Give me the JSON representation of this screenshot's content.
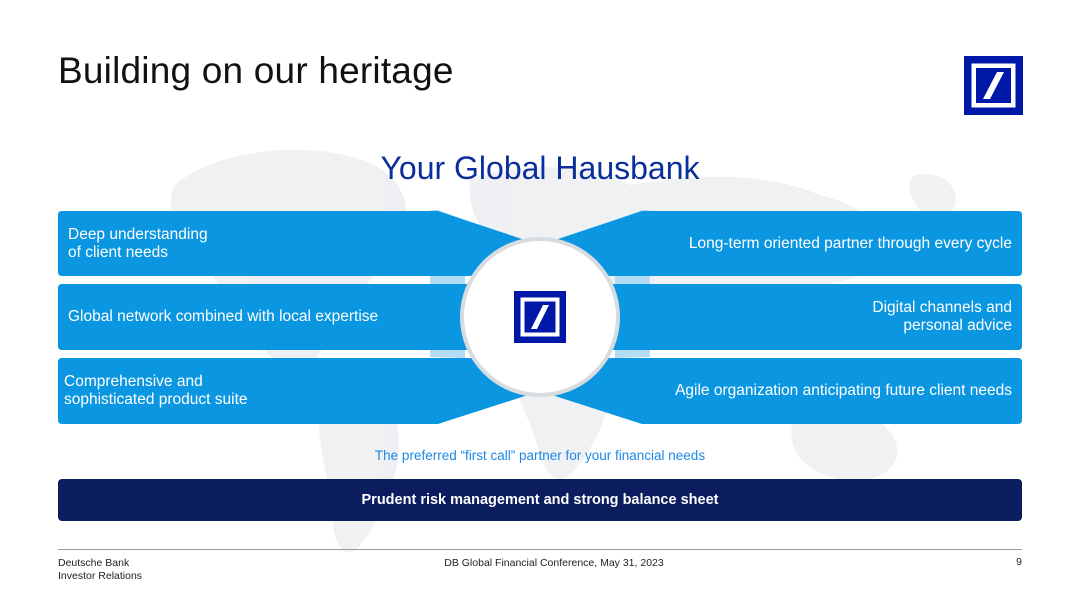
{
  "title": "Building on our heritage",
  "subtitle": "Your Global Hausbank",
  "pillars_left": [
    {
      "line1": "Deep understanding",
      "line2": "of client needs"
    },
    {
      "line1": "Global network combined with local expertise",
      "line2": ""
    },
    {
      "line1": "Comprehensive and",
      "line2": "sophisticated product suite"
    }
  ],
  "pillars_right": [
    {
      "line1": "Long-term oriented partner through every cycle",
      "line2": ""
    },
    {
      "line1": "Digital channels and",
      "line2": "personal advice"
    },
    {
      "line1": "Agile organization anticipating future client needs",
      "line2": ""
    }
  ],
  "tagline": "The preferred “first call” partner for your financial needs",
  "foundation": "Prudent risk management and strong balance sheet",
  "footer": {
    "company": "Deutsche Bank",
    "department": "Investor Relations",
    "event": "DB Global Financial Conference, May 31, 2023",
    "page": "9"
  },
  "colors": {
    "brand_blue": "#0018a8",
    "box_blue": "#0a96e0",
    "navy": "#0b1d5e",
    "title_blue": "#0a2f9c",
    "tagline_blue": "#1e88e5"
  },
  "icons": [
    "deutsche-bank-logo-icon",
    "world-map-background"
  ]
}
